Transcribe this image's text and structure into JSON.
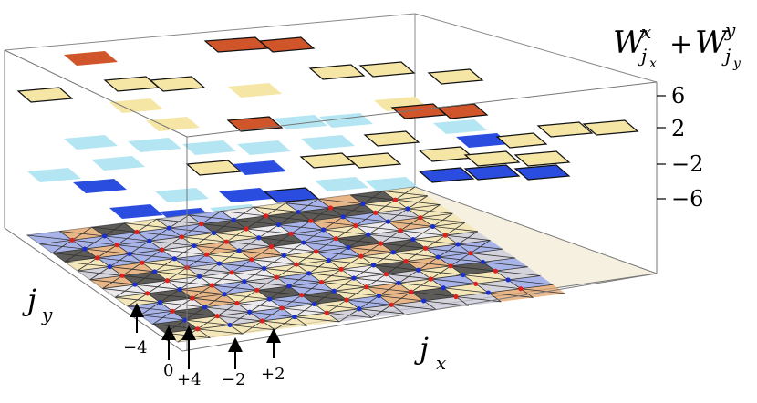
{
  "z_axis_label": {
    "main_1": "W",
    "sup_1": "x",
    "sub_1": "j",
    "subsub_1": "x",
    "plus": "+",
    "main_2": "W",
    "sup_2": "y",
    "sub_2": "j",
    "subsub_2": "y"
  },
  "z_ticks": [
    "6",
    "2",
    "−2",
    "−6"
  ],
  "z_tick_values": [
    6,
    2,
    -2,
    -6
  ],
  "jy_label": {
    "main": "j",
    "sub": "y"
  },
  "jx_label": {
    "main": "j",
    "sub": "x"
  },
  "arrow_labels": [
    "−4",
    "0",
    "+4",
    "−2",
    "+2"
  ],
  "colors": {
    "dark_orange": "#d0552a",
    "light_yellow": "#f5e6a6",
    "light_cyan": "#b3e6f2",
    "royal_blue": "#2a4de0",
    "lattice_red": "#e0201a",
    "lattice_blue": "#1a2fd0",
    "shade_dark": "#2a2a2a",
    "shade_periwinkle": "#8ea0ec",
    "shade_cream": "#f3e4ad",
    "shade_orange": "#e3a36a"
  },
  "tile_legend_levels": {
    "dark_orange": 8,
    "light_yellow": 4,
    "light_cyan": 0,
    "royal_blue": -4
  }
}
